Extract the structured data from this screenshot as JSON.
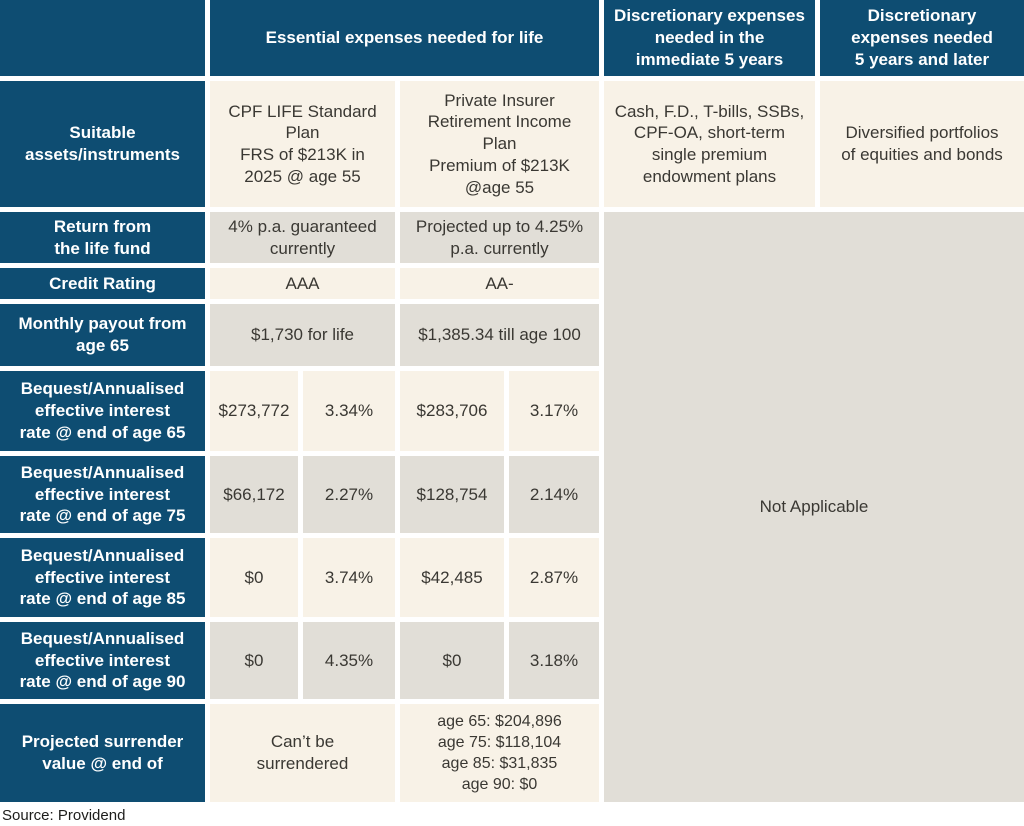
{
  "chart_data": {
    "type": "table",
    "header": {
      "corner": "",
      "essential": "Essential expenses needed for life",
      "discretionary_immediate": "Discretionary expenses\nneeded in the\nimmediate 5 years",
      "discretionary_later": "Discretionary\nexpenses needed\n5 years and later"
    },
    "suitable_row": {
      "label": "Suitable\nassets/instruments",
      "cpf_life": "CPF LIFE Standard\nPlan\nFRS of $213K in\n2025 @ age 55",
      "private_insurer": "Private Insurer\nRetirement Income\nPlan\nPremium of $213K\n@age 55",
      "discretionary_immediate": "Cash, F.D., T-bills, SSBs,\nCPF-OA, short-term\nsingle premium\nendowment plans",
      "discretionary_later": "Diversified portfolios\nof equities and bonds"
    },
    "simple_rows": [
      {
        "label": "Return from\nthe life fund",
        "cpf_life": "4% p.a. guaranteed\ncurrently",
        "private_insurer": "Projected up to 4.25%\np.a. currently"
      },
      {
        "label": "Credit Rating",
        "cpf_life": "AAA",
        "private_insurer": "AA-"
      },
      {
        "label": "Monthly payout from\nage 65",
        "cpf_life": "$1,730 for life",
        "private_insurer": "$1,385.34 till age 100"
      }
    ],
    "bequest_rows": [
      {
        "label": "Bequest/Annualised\neffective interest\nrate @ end of age 65",
        "cpf_bequest": "$273,772",
        "cpf_rate": "3.34%",
        "private_bequest": "$283,706",
        "private_rate": "3.17%"
      },
      {
        "label": "Bequest/Annualised\neffective interest\nrate @ end of age 75",
        "cpf_bequest": "$66,172",
        "cpf_rate": "2.27%",
        "private_bequest": "$128,754",
        "private_rate": "2.14%"
      },
      {
        "label": "Bequest/Annualised\neffective interest\nrate @ end of age 85",
        "cpf_bequest": "$0",
        "cpf_rate": "3.74%",
        "private_bequest": "$42,485",
        "private_rate": "2.87%"
      },
      {
        "label": "Bequest/Annualised\neffective interest\nrate @ end of age 90",
        "cpf_bequest": "$0",
        "cpf_rate": "4.35%",
        "private_bequest": "$0",
        "private_rate": "3.18%"
      }
    ],
    "surrender_row": {
      "label": "Projected surrender\nvalue @ end of",
      "cpf_life": "Can’t be\nsurrendered",
      "private_insurer": "age 65: $204,896\nage 75: $118,104\nage 85: $31,835\nage 90: $0"
    },
    "not_applicable": "Not Applicable",
    "source": "Source: Providend"
  },
  "colors": {
    "header_blue": "#0e4d72",
    "cream": "#f8f2e7",
    "gray": "#e1ded7",
    "text_dark": "#3a3833",
    "text_light": "#ffffff"
  }
}
